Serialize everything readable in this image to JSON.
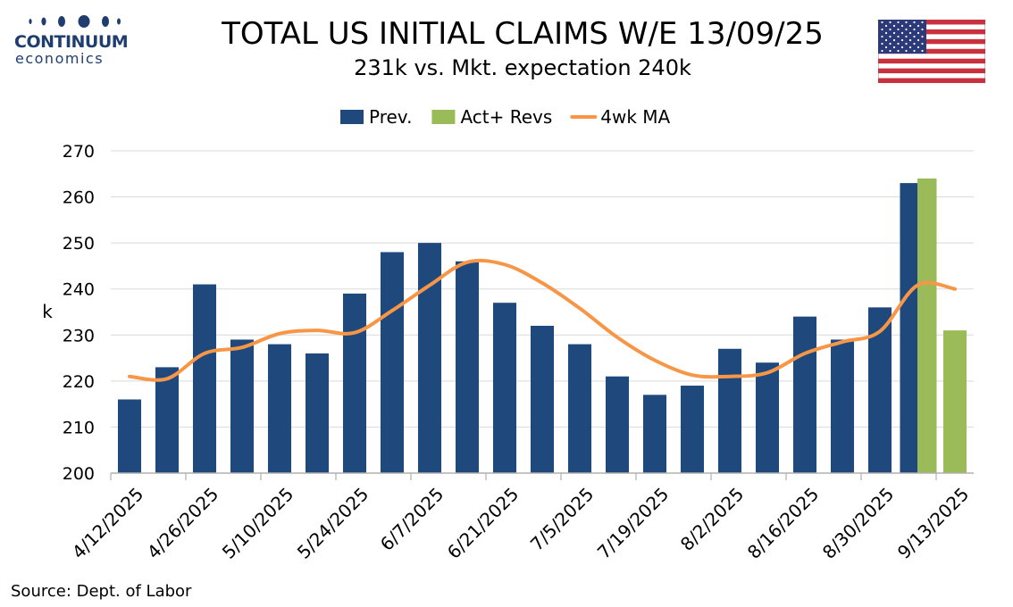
{
  "logo": {
    "name": "CONTINUUM",
    "tagline": "economics"
  },
  "title": "TOTAL US INITIAL CLAIMS W/E 13/09/25",
  "subtitle": "231k vs. Mkt. expectation 240k",
  "source": "Source: Dept. of Labor",
  "flag_icon": "us-flag-icon",
  "colors": {
    "prev": "#1f497d",
    "act": "#9bbb59",
    "ma": "#f79646",
    "grid": "#d9d9d9",
    "logo": "#1f3d6e"
  },
  "chart_data": {
    "type": "bar",
    "ylabel": "k",
    "ylim": [
      200,
      270
    ],
    "yticks": [
      200,
      210,
      220,
      230,
      240,
      250,
      260,
      270
    ],
    "grid": true,
    "legend_position": "top-center",
    "categories": [
      "4/12/2025",
      "4/19/2025",
      "4/26/2025",
      "5/3/2025",
      "5/10/2025",
      "5/17/2025",
      "5/24/2025",
      "5/31/2025",
      "6/7/2025",
      "6/14/2025",
      "6/21/2025",
      "6/28/2025",
      "7/5/2025",
      "7/12/2025",
      "7/19/2025",
      "7/26/2025",
      "8/2/2025",
      "8/9/2025",
      "8/16/2025",
      "8/23/2025",
      "8/30/2025",
      "9/6/2025",
      "9/13/2025"
    ],
    "tick_labels": [
      "4/12/2025",
      "4/26/2025",
      "5/10/2025",
      "5/24/2025",
      "6/7/2025",
      "6/21/2025",
      "7/5/2025",
      "7/19/2025",
      "8/2/2025",
      "8/16/2025",
      "8/30/2025",
      "9/13/2025"
    ],
    "series": [
      {
        "name": "Prev.",
        "type": "bar",
        "values": [
          216,
          223,
          241,
          229,
          228,
          226,
          239,
          248,
          250,
          246,
          237,
          232,
          228,
          221,
          217,
          219,
          227,
          224,
          234,
          229,
          236,
          263,
          null
        ]
      },
      {
        "name": "Act+ Revs",
        "type": "bar",
        "values": [
          null,
          null,
          null,
          null,
          null,
          null,
          null,
          null,
          null,
          null,
          null,
          null,
          null,
          null,
          null,
          null,
          null,
          null,
          null,
          null,
          null,
          264,
          231
        ]
      },
      {
        "name": "4wk MA",
        "type": "line",
        "values": [
          221,
          220.5,
          226,
          227.3,
          230.3,
          231,
          230.5,
          235.3,
          240.8,
          245.8,
          245.3,
          241.3,
          235.8,
          229.5,
          224.5,
          221.3,
          221,
          221.8,
          226,
          228.5,
          230.8,
          240.8,
          240
        ]
      }
    ]
  }
}
